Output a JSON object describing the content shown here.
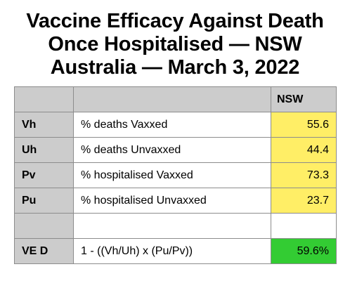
{
  "title": {
    "line1": "Vaccine Efficacy Against Death",
    "line2": "Once Hospitalised — NSW",
    "line3": "Australia — March 3, 2022"
  },
  "table": {
    "header": {
      "col1": "",
      "col2": "",
      "col3": "NSW"
    },
    "rows": [
      {
        "code": "Vh",
        "desc": "% deaths Vaxxed",
        "value": "55.6"
      },
      {
        "code": "Uh",
        "desc": "% deaths Unvaxxed",
        "value": "44.4"
      },
      {
        "code": "Pv",
        "desc": "% hospitalised Vaxxed",
        "value": "73.3"
      },
      {
        "code": "Pu",
        "desc": "% hospitalised Unvaxxed",
        "value": "23.7"
      },
      {
        "code": "",
        "desc": "",
        "value": ""
      },
      {
        "code": "VE D",
        "desc": "1 - ((Vh/Uh) x (Pu/Pv))",
        "value": "59.6%"
      }
    ]
  },
  "colors": {
    "header_gray": "#cccccc",
    "value_yellow": "#ffee66",
    "result_green": "#33cc33",
    "border": "#8c8c8c"
  }
}
